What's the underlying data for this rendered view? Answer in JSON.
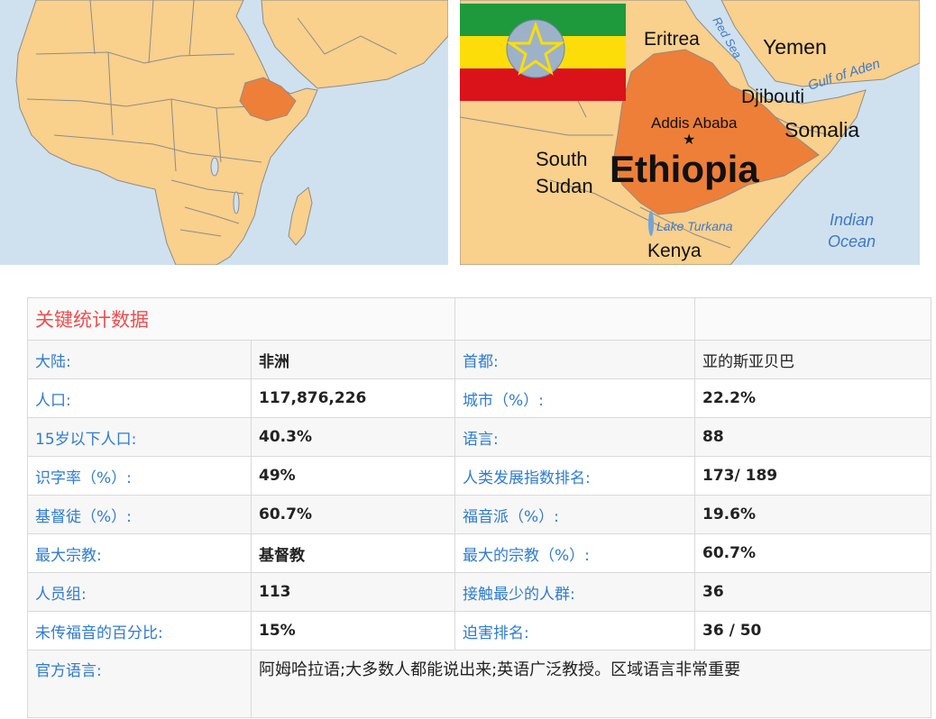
{
  "maps": {
    "africa": {
      "highlight": "Ethiopia",
      "ocean_color": "#cfe1ef",
      "land_color": "#f9d08c",
      "highlight_color": "#ee7f38"
    },
    "ethiopia": {
      "country_label": "Ethiopia",
      "capital_label": "Addis Ababa",
      "neighbors": {
        "eritrea": "Eritrea",
        "yemen": "Yemen",
        "djibouti": "Djibouti",
        "somalia": "Somalia",
        "south_sudan_1": "South",
        "south_sudan_2": "Sudan",
        "kenya": "Kenya"
      },
      "water": {
        "red_sea": "Red Sea",
        "gulf_of_aden": "Gulf of Aden",
        "lake_turkana": "Lake Turkana",
        "indian_1": "Indian",
        "indian_2": "Ocean"
      },
      "flag": {
        "stripes": [
          "#1e9a3c",
          "#fcdd09",
          "#da121a"
        ],
        "emblem": "#0f47af"
      }
    }
  },
  "stats": {
    "title": "关键统计数据",
    "rows": [
      {
        "k1": "大陆:",
        "v1": "非洲",
        "k2": "首都:",
        "v2": "亚的斯亚贝巴"
      },
      {
        "k1": "人口:",
        "v1": "117,876,226",
        "k2": "城市（%）:",
        "v2": "22.2%"
      },
      {
        "k1": "15岁以下人口:",
        "v1": "40.3%",
        "k2": "语言:",
        "v2": "88"
      },
      {
        "k1": "识字率（%）:",
        "v1": "49%",
        "k2": "人类发展指数排名:",
        "v2": "173/ 189"
      },
      {
        "k1": "基督徒（%）:",
        "v1": "60.7%",
        "k2": "福音派（%）:",
        "v2": "19.6%"
      },
      {
        "k1": "最大宗教:",
        "v1": "基督教",
        "k2": "最大的宗教（%）:",
        "v2": "60.7%"
      },
      {
        "k1": "人员组:",
        "v1": "113",
        "k2": "接触最少的人群:",
        "v2": "36"
      },
      {
        "k1": "未传福音的百分比:",
        "v1": "15%",
        "k2": "迫害排名:",
        "v2": "36 / 50"
      }
    ],
    "official_language_key": "官方语言:",
    "official_language_value": "阿姆哈拉语;大多数人都能说出来;英语广泛教授。区域语言非常重要"
  }
}
